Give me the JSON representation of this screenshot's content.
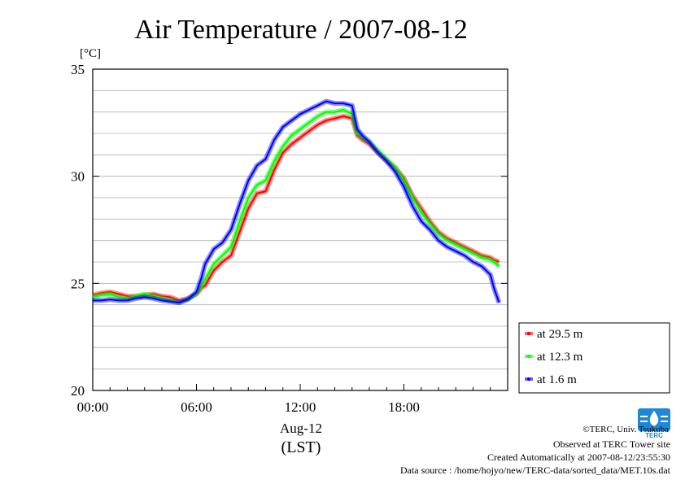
{
  "chart_data": {
    "type": "line",
    "title": "Air Temperature / 2007-08-12",
    "ylabel": "[°C]",
    "xlabel": "Aug-12",
    "xlabel2": "(LST)",
    "x_unit": "hours (LST)",
    "xlim": [
      0,
      24
    ],
    "ylim": [
      20,
      35
    ],
    "x_ticks": [
      {
        "value": 0,
        "label": "00:00"
      },
      {
        "value": 6,
        "label": "06:00"
      },
      {
        "value": 12,
        "label": "12:00"
      },
      {
        "value": 18,
        "label": "18:00"
      }
    ],
    "y_ticks": [
      {
        "value": 20,
        "label": "20"
      },
      {
        "value": 25,
        "label": "25"
      },
      {
        "value": 30,
        "label": "30"
      },
      {
        "value": 35,
        "label": "35"
      }
    ],
    "grid": true,
    "legend_position": "lower-right, outside plot",
    "x": [
      0,
      0.5,
      1,
      1.5,
      2,
      2.5,
      3,
      3.5,
      4,
      4.5,
      5,
      5.5,
      6,
      6.3,
      6.5,
      7,
      7.5,
      8,
      8.5,
      9,
      9.5,
      10,
      10.5,
      11,
      11.5,
      12,
      12.5,
      13,
      13.5,
      14,
      14.5,
      15,
      15.3,
      15.6,
      16,
      16.5,
      17,
      17.5,
      18,
      18.5,
      19,
      19.5,
      20,
      20.5,
      21,
      21.5,
      22,
      22.5,
      23,
      23.2,
      23.5
    ],
    "series": [
      {
        "name": "at 29.5 m",
        "color": "#ff0000",
        "values": [
          24.45,
          24.55,
          24.6,
          24.5,
          24.4,
          24.4,
          24.45,
          24.5,
          24.4,
          24.35,
          24.2,
          24.3,
          24.5,
          24.8,
          24.9,
          25.6,
          26.0,
          26.3,
          27.4,
          28.5,
          29.2,
          29.3,
          30.3,
          31.1,
          31.5,
          31.8,
          32.1,
          32.4,
          32.6,
          32.7,
          32.8,
          32.7,
          31.9,
          31.7,
          31.5,
          31.1,
          30.7,
          30.4,
          29.9,
          29.1,
          28.5,
          27.9,
          27.4,
          27.1,
          26.9,
          26.7,
          26.5,
          26.3,
          26.2,
          26.1,
          26.0
        ]
      },
      {
        "name": "at 12.3 m",
        "color": "#00ff00",
        "values": [
          24.35,
          24.45,
          24.5,
          24.35,
          24.3,
          24.4,
          24.5,
          24.4,
          24.3,
          24.2,
          24.1,
          24.25,
          24.5,
          24.9,
          25.2,
          25.9,
          26.3,
          26.7,
          27.9,
          29.0,
          29.6,
          29.8,
          30.7,
          31.4,
          31.9,
          32.2,
          32.5,
          32.8,
          33.0,
          33.0,
          33.1,
          32.9,
          32.0,
          31.8,
          31.6,
          31.2,
          30.8,
          30.4,
          29.8,
          29.0,
          28.3,
          27.8,
          27.3,
          27.0,
          26.8,
          26.6,
          26.4,
          26.2,
          26.1,
          26.0,
          25.8
        ]
      },
      {
        "name": "at 1.6 m",
        "color": "#0000ff",
        "values": [
          24.2,
          24.2,
          24.25,
          24.2,
          24.2,
          24.3,
          24.35,
          24.3,
          24.2,
          24.15,
          24.1,
          24.25,
          24.6,
          25.3,
          25.9,
          26.6,
          26.9,
          27.5,
          28.7,
          29.8,
          30.5,
          30.8,
          31.7,
          32.3,
          32.6,
          32.9,
          33.1,
          33.3,
          33.5,
          33.4,
          33.4,
          33.3,
          32.2,
          31.9,
          31.6,
          31.1,
          30.7,
          30.2,
          29.5,
          28.6,
          27.9,
          27.5,
          27.0,
          26.7,
          26.5,
          26.3,
          26.0,
          25.8,
          25.4,
          24.8,
          24.1
        ]
      }
    ]
  },
  "footer": {
    "copyright": "©TERC, Univ. Tsukuba",
    "observed": "Observed at TERC Tower site",
    "created": "Created Automatically at 2007-08-12/23:55:30",
    "source": "Data source : /home/hojyo/new/TERC-data/sorted_data/MET.10s.dat",
    "logo_text": "TERC"
  }
}
